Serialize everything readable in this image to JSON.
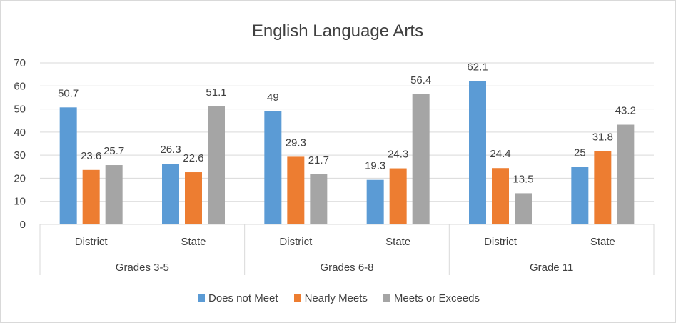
{
  "chart_data": {
    "type": "bar",
    "title": "English Language Arts",
    "xlabel": "",
    "ylabel": "",
    "ylim": [
      0,
      70
    ],
    "yticks": [
      0,
      10,
      20,
      30,
      40,
      50,
      60,
      70
    ],
    "grid": true,
    "legend_position": "bottom",
    "groups": [
      {
        "name": "Grades 3-5",
        "categories": [
          "District",
          "State"
        ]
      },
      {
        "name": "Grades 6-8",
        "categories": [
          "District",
          "State"
        ]
      },
      {
        "name": "Grade 11",
        "categories": [
          "District",
          "State"
        ]
      }
    ],
    "series": [
      {
        "name": "Does not Meet",
        "color": "#5b9bd5",
        "values": [
          50.7,
          26.3,
          49,
          19.3,
          62.1,
          25
        ]
      },
      {
        "name": "Nearly Meets",
        "color": "#ed7d31",
        "values": [
          23.6,
          22.6,
          29.3,
          24.3,
          24.4,
          31.8
        ]
      },
      {
        "name": "Meets or Exceeds",
        "color": "#a5a5a5",
        "values": [
          25.7,
          51.1,
          21.7,
          56.4,
          13.5,
          43.2
        ]
      }
    ]
  }
}
